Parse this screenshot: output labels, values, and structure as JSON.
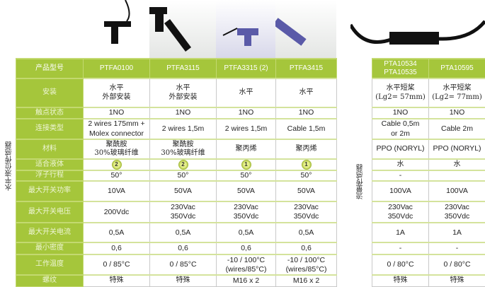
{
  "side_labels": {
    "level": "水平液位传感器",
    "flow": "流量传感器"
  },
  "colors": {
    "accent": "#a5c63b"
  },
  "row_labels": [
    "产品型号",
    "安装",
    "触点状态",
    "连接类型",
    "材料",
    "适合液体",
    "浮子行程",
    "最大开关功率",
    "最大开关电压",
    "最大开关电流",
    "最小密度",
    "工作温度",
    "螺纹"
  ],
  "level": {
    "models": [
      "PTFA0100",
      "PTFA3115",
      "PTFA3315 (2)",
      "PTFA3415"
    ],
    "rows": [
      [
        [
          "水平",
          "外部安装"
        ],
        [
          "水平",
          "外部安装"
        ],
        [
          "水平"
        ],
        [
          "水平"
        ]
      ],
      [
        [
          "1NO"
        ],
        [
          "1NO"
        ],
        [
          "1NO"
        ],
        [
          "1NO"
        ]
      ],
      [
        [
          "2 wires 175mm +",
          "Molex connector"
        ],
        [
          "2 wires 1,5m"
        ],
        [
          "2 wires 1,5m"
        ],
        [
          "Cable 1,5m"
        ]
      ],
      [
        [
          "聚酰胺",
          "30%玻璃纤维"
        ],
        [
          "聚酰胺",
          "30%玻璃纤维"
        ],
        [
          "聚丙烯"
        ],
        [
          "聚丙烯"
        ]
      ],
      [
        [
          "2"
        ],
        [
          "2"
        ],
        [
          "1"
        ],
        [
          "1"
        ]
      ],
      [
        [
          "50°"
        ],
        [
          "50°"
        ],
        [
          "50°"
        ],
        [
          "50°"
        ]
      ],
      [
        [
          "10VA"
        ],
        [
          "50VA"
        ],
        [
          "50VA"
        ],
        [
          "50VA"
        ]
      ],
      [
        [
          "200Vdc"
        ],
        [
          "230Vac",
          "350Vdc"
        ],
        [
          "230Vac",
          "350Vdc"
        ],
        [
          "230Vac",
          "350Vdc"
        ]
      ],
      [
        [
          "0,5A"
        ],
        [
          "0,5A"
        ],
        [
          "0,5A"
        ],
        [
          "0,5A"
        ]
      ],
      [
        [
          "0,6"
        ],
        [
          "0,6"
        ],
        [
          "0,6"
        ],
        [
          "0,6"
        ]
      ],
      [
        [
          "0 / 85°C"
        ],
        [
          "0 / 85°C"
        ],
        [
          "-10 / 100°C",
          "(wires/85°C)"
        ],
        [
          "-10 / 100°C",
          "(wires/85°C)"
        ]
      ],
      [
        [
          "特殊"
        ],
        [
          "特殊"
        ],
        [
          "M16 x 2"
        ],
        [
          "M16 x 2"
        ]
      ]
    ]
  },
  "flow": {
    "models": [
      [
        "PTA10534",
        "PTA10535"
      ],
      [
        "PTA10595"
      ]
    ],
    "rows": [
      [
        [
          "水平短桨",
          "(Lg2= 57mm)"
        ],
        [
          "水平短桨",
          "(Lg2= 77mm)"
        ]
      ],
      [
        [
          "1NO"
        ],
        [
          "1NO"
        ]
      ],
      [
        [
          "Cable 0,5m",
          "or 2m"
        ],
        [
          "Cable 2m"
        ]
      ],
      [
        [
          "PPO (NORYL)"
        ],
        [
          "PPO (NORYL)"
        ]
      ],
      [
        [
          "水"
        ],
        [
          "水"
        ]
      ],
      [
        [
          "-"
        ],
        [
          ""
        ]
      ],
      [
        [
          "100VA"
        ],
        [
          "100VA"
        ]
      ],
      [
        [
          "230Vac",
          "350Vdc"
        ],
        [
          "230Vac",
          "350Vdc"
        ]
      ],
      [
        [
          "1A"
        ],
        [
          "1A"
        ]
      ],
      [
        [
          "-"
        ],
        [
          "-"
        ]
      ],
      [
        [
          "0 / 80°C"
        ],
        [
          "0 / 80°C"
        ]
      ],
      [
        [
          "特殊"
        ],
        [
          "特殊"
        ]
      ]
    ]
  }
}
